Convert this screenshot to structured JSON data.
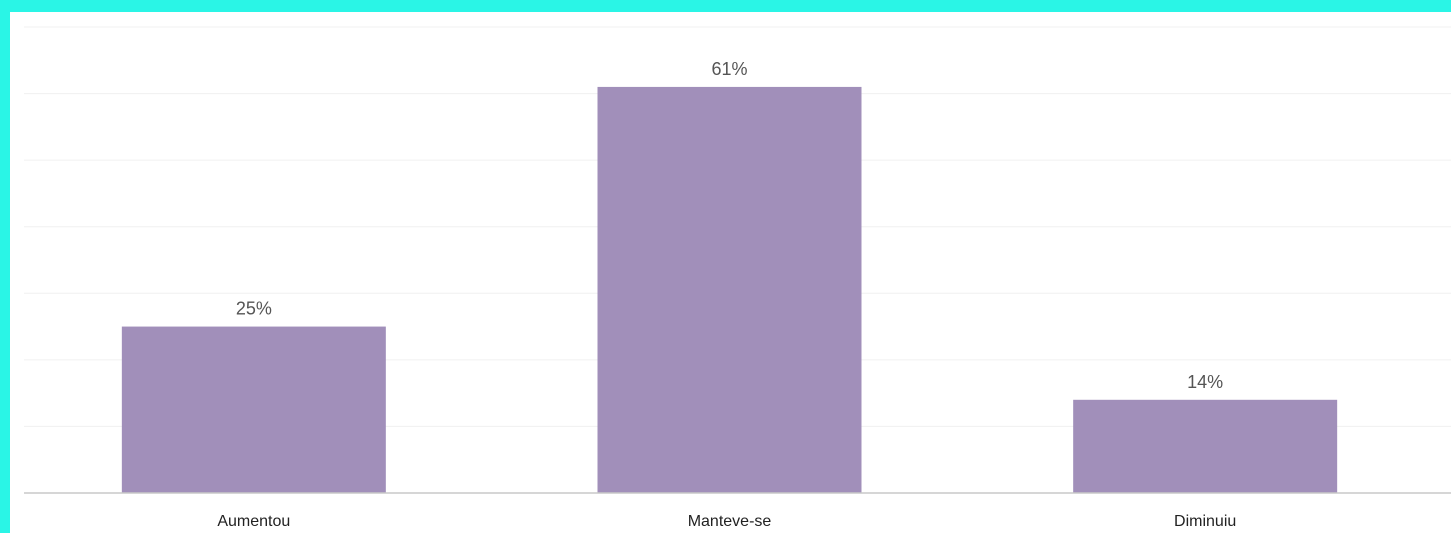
{
  "chart_data": {
    "type": "bar",
    "title": "",
    "xlabel": "",
    "ylabel": "",
    "categories": [
      "Aumentou",
      "Manteve-se",
      "Diminuiu"
    ],
    "values": [
      25,
      61,
      14
    ],
    "value_labels": [
      "25%",
      "61%",
      "14%"
    ],
    "unit": "%",
    "ylim": [
      0,
      70
    ],
    "grid": true,
    "legend": "none",
    "bar_color": "#a18fba"
  },
  "colors": {
    "border": "#2af5e6",
    "background": "#ffffff"
  }
}
